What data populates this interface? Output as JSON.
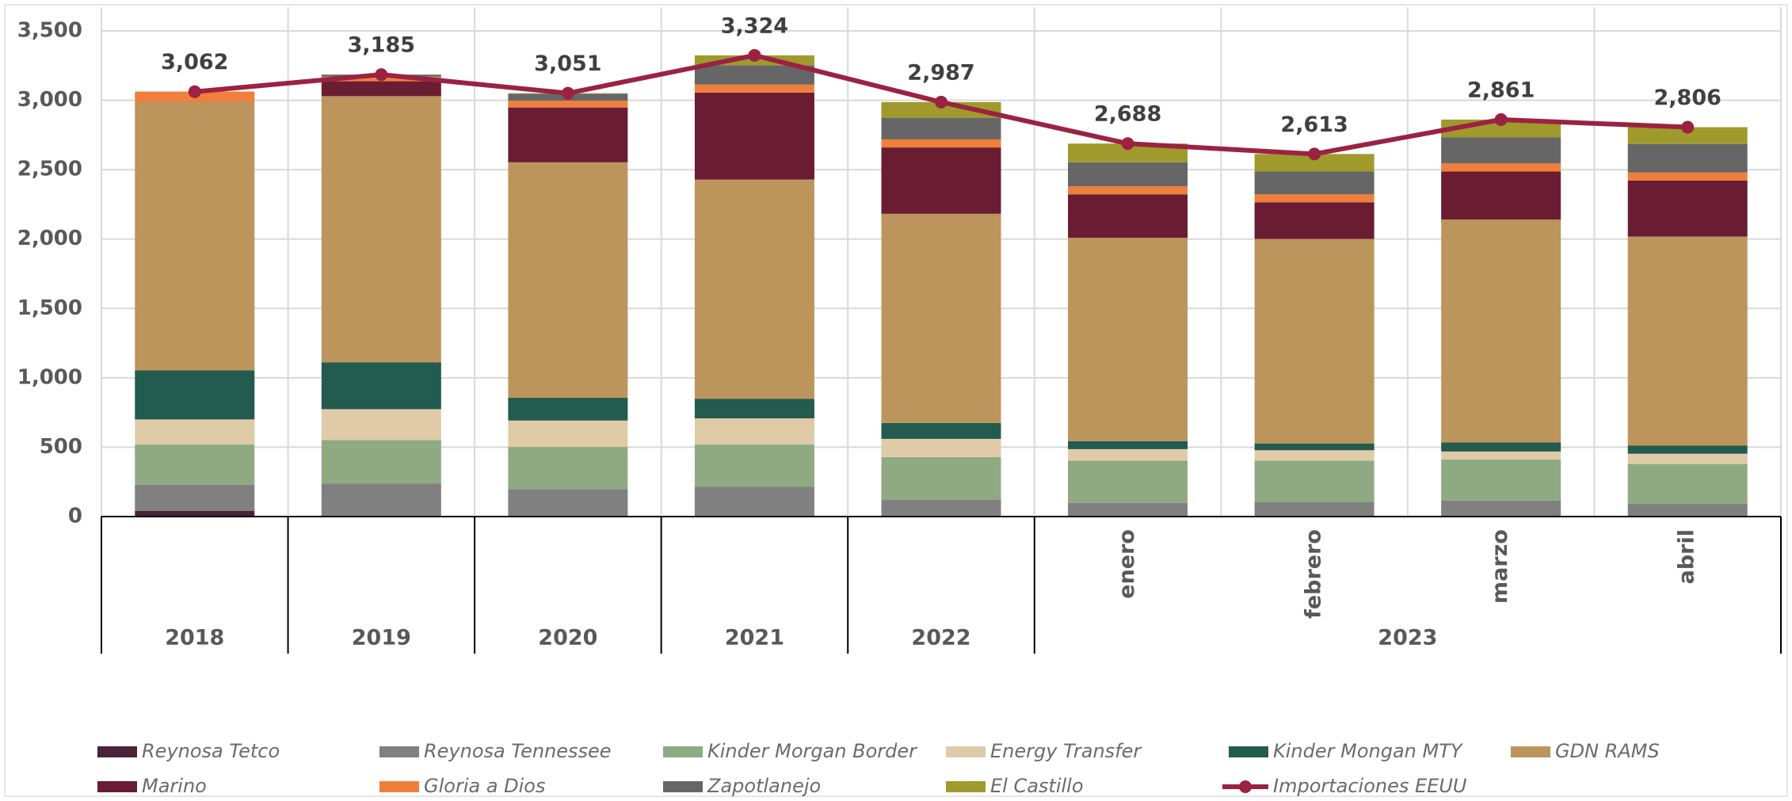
{
  "chart_data": {
    "type": "stacked-bar-line",
    "categories": [
      "2018",
      "2019",
      "2020",
      "2021",
      "2022",
      "enero",
      "febrero",
      "marzo",
      "abril"
    ],
    "category_groups": [
      {
        "label": "2023",
        "start": 5,
        "end": 8
      }
    ],
    "ylim": [
      0,
      3500
    ],
    "yticks": [
      0,
      500,
      {
        "value": 1000,
        "label": "1,000"
      },
      {
        "value": 1500,
        "label": "1,500"
      },
      {
        "value": 2000,
        "label": "2,000"
      },
      {
        "value": 2500,
        "label": "2,500"
      },
      {
        "value": 3000,
        "label": "3,000"
      },
      {
        "value": 3500,
        "label": "3,500"
      }
    ],
    "grid": true,
    "legend": "bottom",
    "series": [
      {
        "name": "Reynosa Tetco",
        "color": "#4a2338",
        "values": [
          40,
          0,
          0,
          0,
          0,
          0,
          0,
          0,
          0
        ]
      },
      {
        "name": "Reynosa Tennessee",
        "color": "#808080",
        "values": [
          190,
          239,
          198,
          214,
          124,
          99,
          107,
          115,
          91
        ]
      },
      {
        "name": "Kinder Morgan Border",
        "color": "#8faa82",
        "values": [
          289,
          313,
          304,
          305,
          304,
          305,
          297,
          297,
          288
        ]
      },
      {
        "name": "Energy Transfer",
        "color": "#e0cba8",
        "values": [
          181,
          222,
          190,
          189,
          132,
          82,
          74,
          57,
          74
        ]
      },
      {
        "name": "Kinder Mongan MTY",
        "color": "#235b4e",
        "values": [
          354,
          338,
          164,
          140,
          115,
          58,
          49,
          66,
          58
        ]
      },
      {
        "name": "GDN RAMS",
        "color": "#bc955c",
        "values": [
          1935,
          1918,
          1697,
          1581,
          1507,
          1465,
          1474,
          1606,
          1507
        ]
      },
      {
        "name": "Marino",
        "color": "#691c32",
        "values": [
          0,
          107,
          395,
          626,
          478,
          313,
          264,
          346,
          403
        ]
      },
      {
        "name": "Gloria a Dios",
        "color": "#f07f3c",
        "values": [
          74,
          33,
          49,
          58,
          58,
          58,
          57,
          58,
          58
        ]
      },
      {
        "name": "Zapotlanejo",
        "color": "#666666",
        "values": [
          0,
          15,
          50,
          140,
          156,
          173,
          165,
          189,
          206
        ]
      },
      {
        "name": "El Castillo",
        "color": "#9f9a2b",
        "values": [
          0,
          0,
          4,
          71,
          113,
          135,
          126,
          127,
          121
        ]
      },
      {
        "name": "Importaciones EEUU",
        "color": "#9b2242",
        "kind": "line",
        "values": [
          3062,
          3185,
          3051,
          3324,
          2987,
          2688,
          2613,
          2861,
          2806
        ],
        "value_labels": [
          "3,062",
          "3,185",
          "3,051",
          "3,324",
          "2,987",
          "2,688",
          "2,613",
          "2,861",
          "2,806"
        ]
      }
    ]
  }
}
